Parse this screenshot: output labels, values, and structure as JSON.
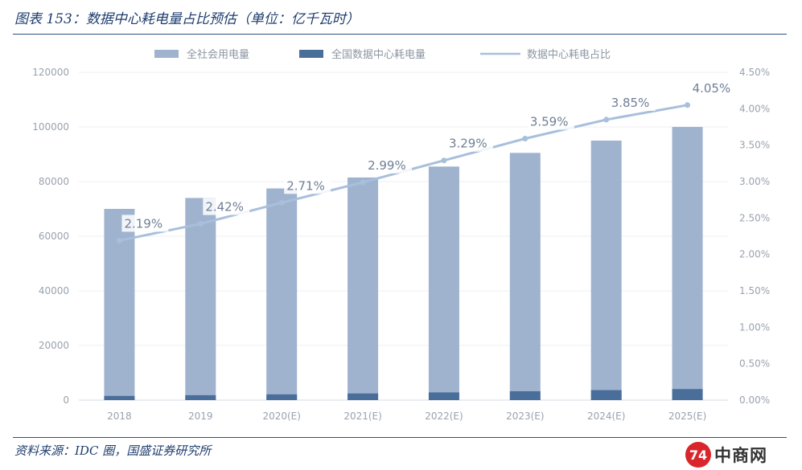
{
  "title": "图表 153：数据中心耗电量占比预估（单位：亿千瓦时）",
  "source": "资料来源：IDC 圈，国盛证券研究所",
  "logo": {
    "mark": "74",
    "text": "中商网"
  },
  "colors": {
    "total": "#9fb3cf",
    "dc": "#4a6e9a",
    "line": "#a8bfdc",
    "accent": "#1f3e6e"
  },
  "chart_data": {
    "type": "bar",
    "categories": [
      "2018",
      "2019",
      "2020(E)",
      "2021(E)",
      "2022(E)",
      "2023(E)",
      "2024(E)",
      "2025(E)"
    ],
    "series": [
      {
        "name": "全社会用电量",
        "type": "bar",
        "axis": "left",
        "values": [
          70000,
          74000,
          77500,
          81500,
          85500,
          90500,
          95000,
          100000
        ]
      },
      {
        "name": "全国数据中心耗电量",
        "type": "bar",
        "axis": "left",
        "values": [
          1533,
          1791,
          2100,
          2437,
          2813,
          3249,
          3658,
          4050
        ]
      },
      {
        "name": "数据中心耗电占比",
        "type": "line",
        "axis": "right",
        "values": [
          2.19,
          2.42,
          2.71,
          2.99,
          3.29,
          3.59,
          3.85,
          4.05
        ],
        "labels": [
          "2.19%",
          "2.42%",
          "2.71%",
          "2.99%",
          "3.29%",
          "3.59%",
          "3.85%",
          "4.05%"
        ]
      }
    ],
    "ylim": [
      0,
      120000
    ],
    "y_ticks": [
      "0",
      "20000",
      "40000",
      "60000",
      "80000",
      "100000",
      "120000"
    ],
    "y2lim": [
      0,
      4.5
    ],
    "y2_ticks": [
      "0.00%",
      "0.50%",
      "1.00%",
      "1.50%",
      "2.00%",
      "2.50%",
      "3.00%",
      "3.50%",
      "4.00%",
      "4.50%"
    ],
    "legend_position": "top",
    "grid": true
  }
}
